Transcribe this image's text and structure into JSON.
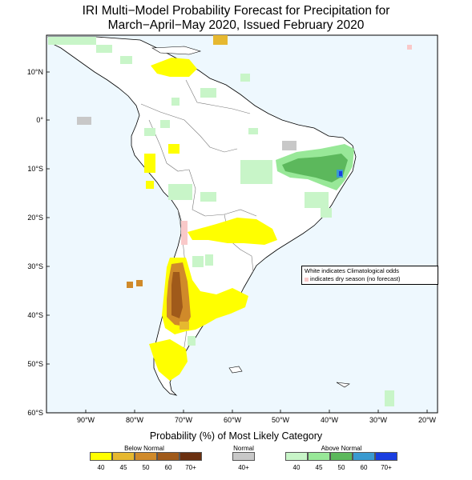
{
  "title_line1": "IRI Multi−Model Probability Forecast for Precipitation for",
  "title_line2": "March−April−May 2020, Issued February 2020",
  "lat_labels": [
    "10°N",
    "0°",
    "10°S",
    "20°S",
    "30°S",
    "40°S",
    "50°S",
    "60°S"
  ],
  "lon_labels": [
    "90°W",
    "80°W",
    "70°W",
    "60°W",
    "50°W",
    "40°W",
    "30°W",
    "20°W"
  ],
  "note": {
    "line1": "White indicates Climatological odds",
    "line2": "indicates dry season (no forecast)"
  },
  "legend": {
    "title": "Probability (%) of Most Likely Category",
    "below_label": "Below Normal",
    "normal_label": "Normal",
    "above_label": "Above Normal",
    "below": [
      {
        "label": "40",
        "color": "#ffff00"
      },
      {
        "label": "45",
        "color": "#e6b830"
      },
      {
        "label": "50",
        "color": "#d08a2a"
      },
      {
        "label": "60",
        "color": "#a05a1a"
      },
      {
        "label": "70+",
        "color": "#6b3010"
      }
    ],
    "normal": [
      {
        "label": "40+",
        "color": "#c8c8c8"
      }
    ],
    "above": [
      {
        "label": "40",
        "color": "#c8f5c8"
      },
      {
        "label": "45",
        "color": "#98e898"
      },
      {
        "label": "50",
        "color": "#5cb85c"
      },
      {
        "label": "60",
        "color": "#3a9ad0"
      },
      {
        "label": "70+",
        "color": "#1a3ee0"
      }
    ]
  },
  "colors": {
    "ocean": "#eef8fe",
    "land": "#ffffff",
    "dry_season": "#f9c9c9"
  }
}
